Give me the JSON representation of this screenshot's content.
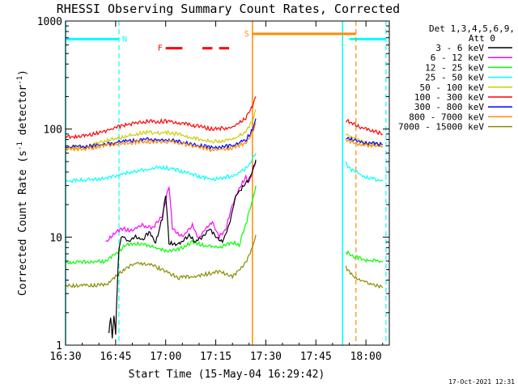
{
  "chart_data": {
    "type": "line",
    "title": "RHESSI Observing Summary Count Rates, Corrected",
    "xlabel": "Start Time (15-May-04 16:29:42)",
    "ylabel_main": "Corrected Count Rate (s",
    "ylabel_sup1": "-1",
    "ylabel_mid": " detector",
    "ylabel_sup2": "-1",
    "ylabel_end": ")",
    "yscale": "log",
    "ylim": [
      1,
      1000
    ],
    "xlim_minutes": [
      0,
      97
    ],
    "x_ticks": [
      {
        "m": 0,
        "label": "16:30"
      },
      {
        "m": 15,
        "label": "16:45"
      },
      {
        "m": 30,
        "label": "17:00"
      },
      {
        "m": 45,
        "label": "17:15"
      },
      {
        "m": 60,
        "label": "17:30"
      },
      {
        "m": 75,
        "label": "17:45"
      },
      {
        "m": 90,
        "label": "18:00"
      }
    ],
    "y_ticks": [
      {
        "v": 1,
        "label": "1"
      },
      {
        "v": 10,
        "label": "10"
      },
      {
        "v": 100,
        "label": "100"
      },
      {
        "v": 1000,
        "label": "1000"
      }
    ],
    "legend": {
      "placement": "right",
      "header1": "Det 1,3,4,5,6,9,",
      "header2": "Att 0",
      "entries": [
        {
          "label": "3 - 6 keV",
          "color": "#000000"
        },
        {
          "label": "6 - 12 keV",
          "color": "#ff00ff"
        },
        {
          "label": "12 - 25 keV",
          "color": "#00ff00"
        },
        {
          "label": "25 - 50 keV",
          "color": "#00ffff"
        },
        {
          "label": "50 - 100 keV",
          "color": "#cccc00"
        },
        {
          "label": "100 - 300 keV",
          "color": "#ff0000"
        },
        {
          "label": "300 - 800 keV",
          "color": "#0000ff"
        },
        {
          "label": "800 - 7000 keV",
          "color": "#ff8c00"
        },
        {
          "label": "7000 - 15000 keV",
          "color": "#8b8b00"
        }
      ]
    },
    "series": [
      {
        "name": "100 - 300 keV",
        "color": "#ff0000",
        "segments": [
          [
            [
              0,
              84
            ],
            [
              6,
              87
            ],
            [
              10,
              92
            ],
            [
              14,
              100
            ],
            [
              18,
              110
            ],
            [
              25,
              118
            ],
            [
              32,
              117
            ],
            [
              38,
              108
            ],
            [
              44,
              100
            ],
            [
              50,
              104
            ],
            [
              54,
              125
            ],
            [
              56,
              162
            ],
            [
              57,
              200
            ]
          ],
          [
            [
              84,
              120
            ],
            [
              86,
              112
            ],
            [
              90,
              100
            ],
            [
              93,
              95
            ],
            [
              95,
              90
            ]
          ]
        ]
      },
      {
        "name": "50 - 100 keV",
        "color": "#cccc00",
        "segments": [
          [
            [
              0,
              66
            ],
            [
              6,
              68
            ],
            [
              10,
              75
            ],
            [
              16,
              83
            ],
            [
              24,
              93
            ],
            [
              32,
              92
            ],
            [
              38,
              83
            ],
            [
              44,
              76
            ],
            [
              50,
              80
            ],
            [
              54,
              93
            ],
            [
              56,
              118
            ],
            [
              57,
              152
            ]
          ],
          [
            [
              84,
              90
            ],
            [
              86,
              84
            ],
            [
              90,
              75
            ],
            [
              93,
              72
            ],
            [
              95,
              70
            ]
          ]
        ]
      },
      {
        "name": "300 - 800 keV",
        "color": "#0000ff",
        "segments": [
          [
            [
              0,
              68
            ],
            [
              6,
              69
            ],
            [
              10,
              71
            ],
            [
              16,
              76
            ],
            [
              24,
              80
            ],
            [
              32,
              79
            ],
            [
              38,
              72
            ],
            [
              44,
              67
            ],
            [
              50,
              70
            ],
            [
              54,
              80
            ],
            [
              56,
              98
            ],
            [
              57,
              125
            ]
          ],
          [
            [
              84,
              84
            ],
            [
              86,
              79
            ],
            [
              90,
              74
            ],
            [
              93,
              73
            ],
            [
              95,
              72
            ]
          ]
        ]
      },
      {
        "name": "800 - 7000 keV",
        "color": "#ff8c00",
        "segments": [
          [
            [
              0,
              65
            ],
            [
              6,
              66
            ],
            [
              10,
              69
            ],
            [
              16,
              73
            ],
            [
              24,
              77
            ],
            [
              32,
              76
            ],
            [
              38,
              70
            ],
            [
              44,
              64
            ],
            [
              50,
              66
            ],
            [
              54,
              75
            ],
            [
              56,
              92
            ],
            [
              57,
              115
            ]
          ],
          [
            [
              84,
              80
            ],
            [
              86,
              75
            ],
            [
              90,
              71
            ],
            [
              93,
              70
            ],
            [
              95,
              69
            ]
          ]
        ]
      },
      {
        "name": "7000 - 15000 keV",
        "color": "#8b8b00",
        "segments": [
          [
            [
              0,
              3.5
            ],
            [
              8,
              3.6
            ],
            [
              12,
              3.6
            ],
            [
              15,
              4.3
            ],
            [
              18,
              5.2
            ],
            [
              22,
              5.8
            ],
            [
              26,
              5.5
            ],
            [
              30,
              4.8
            ],
            [
              34,
              4.2
            ],
            [
              40,
              4.4
            ],
            [
              46,
              4.8
            ],
            [
              50,
              4.3
            ],
            [
              54,
              5.8
            ],
            [
              56,
              8
            ],
            [
              57,
              10.5
            ]
          ],
          [
            [
              84,
              5.2
            ],
            [
              86,
              4.4
            ],
            [
              90,
              3.8
            ],
            [
              93,
              3.6
            ],
            [
              95,
              3.4
            ]
          ]
        ]
      },
      {
        "name": "12 - 25 keV",
        "color": "#00ff00",
        "segments": [
          [
            [
              0,
              5.8
            ],
            [
              8,
              5.9
            ],
            [
              12,
              6
            ],
            [
              15,
              7
            ],
            [
              18,
              8.4
            ],
            [
              22,
              8.8
            ],
            [
              26,
              8.2
            ],
            [
              30,
              7.4
            ],
            [
              34,
              7.7
            ],
            [
              38,
              9
            ],
            [
              42,
              8.3
            ],
            [
              46,
              8
            ],
            [
              50,
              9
            ],
            [
              52,
              8.5
            ],
            [
              54,
              13
            ],
            [
              56,
              22
            ],
            [
              57,
              30
            ]
          ],
          [
            [
              84,
              7.3
            ],
            [
              86,
              6.7
            ],
            [
              90,
              6.1
            ],
            [
              93,
              6
            ],
            [
              95,
              5.9
            ]
          ]
        ]
      },
      {
        "name": "25 - 50 keV",
        "color": "#00ffff",
        "segments": [
          [
            [
              0,
              33
            ],
            [
              8,
              34
            ],
            [
              12,
              35
            ],
            [
              16,
              38
            ],
            [
              22,
              41
            ],
            [
              28,
              44
            ],
            [
              32,
              43
            ],
            [
              38,
              38
            ],
            [
              44,
              34
            ],
            [
              50,
              37
            ],
            [
              54,
              43
            ],
            [
              56,
              52
            ],
            [
              57,
              60
            ]
          ],
          [
            [
              84,
              48
            ],
            [
              86,
              41
            ],
            [
              90,
              36
            ],
            [
              93,
              34
            ],
            [
              95,
              33
            ]
          ]
        ]
      },
      {
        "name": "6 - 12 keV",
        "color": "#ff00ff",
        "segments": [
          [
            [
              12,
              9
            ],
            [
              14,
              10.5
            ],
            [
              17,
              12
            ],
            [
              20,
              11.5
            ],
            [
              23,
              13
            ],
            [
              26,
              12
            ],
            [
              29,
              16
            ],
            [
              31,
              30
            ],
            [
              32,
              12
            ],
            [
              35,
              10
            ],
            [
              38,
              13
            ],
            [
              40,
              9.5
            ],
            [
              42,
              12
            ],
            [
              44,
              14
            ],
            [
              46,
              10
            ],
            [
              48,
              12
            ],
            [
              50,
              20
            ],
            [
              52,
              28
            ],
            [
              54,
              36
            ],
            [
              55,
              32
            ],
            [
              56,
              40
            ],
            [
              57,
              50
            ]
          ]
        ]
      },
      {
        "name": "3 - 6 keV",
        "color": "#000000",
        "segments": [
          [
            [
              13,
              1.3
            ],
            [
              13.5,
              1.8
            ],
            [
              14,
              1.2
            ],
            [
              14.5,
              1.9
            ],
            [
              15,
              1.3
            ],
            [
              15.5,
              3.5
            ],
            [
              16,
              8
            ],
            [
              17,
              10.5
            ],
            [
              19,
              9
            ],
            [
              21,
              10
            ],
            [
              23,
              9.5
            ],
            [
              25,
              11
            ],
            [
              27,
              9
            ],
            [
              29,
              15
            ],
            [
              30,
              25
            ],
            [
              31,
              9
            ],
            [
              33,
              8.5
            ],
            [
              35,
              9
            ],
            [
              37,
              10.5
            ],
            [
              39,
              9
            ],
            [
              41,
              10
            ],
            [
              43,
              12
            ],
            [
              45,
              10
            ],
            [
              47,
              9
            ],
            [
              49,
              13
            ],
            [
              51,
              24
            ],
            [
              53,
              29
            ],
            [
              55,
              34
            ],
            [
              56,
              42
            ],
            [
              57,
              52
            ]
          ]
        ]
      }
    ],
    "annotations": {
      "N": {
        "label": "N",
        "color": "#00ffff",
        "line_y": 680,
        "spans": [
          [
            0,
            16
          ],
          [
            85,
            96
          ]
        ],
        "dashed_vlines": [
          16,
          96
        ],
        "solid_vlines": [
          0,
          83
        ]
      },
      "S": {
        "label": "S",
        "color": "#ff8c00",
        "line_y": 760,
        "spans": [
          [
            56,
            87
          ]
        ],
        "solid_vlines": [
          56
        ],
        "dashed_vlines": [
          87
        ]
      },
      "F": {
        "label": "F",
        "color": "#ff0000",
        "line_y": 560,
        "spans": [
          [
            30,
            35
          ],
          [
            41,
            44
          ],
          [
            46,
            49
          ]
        ]
      }
    },
    "footer_timestamp": "17-Oct-2021 12:31"
  }
}
